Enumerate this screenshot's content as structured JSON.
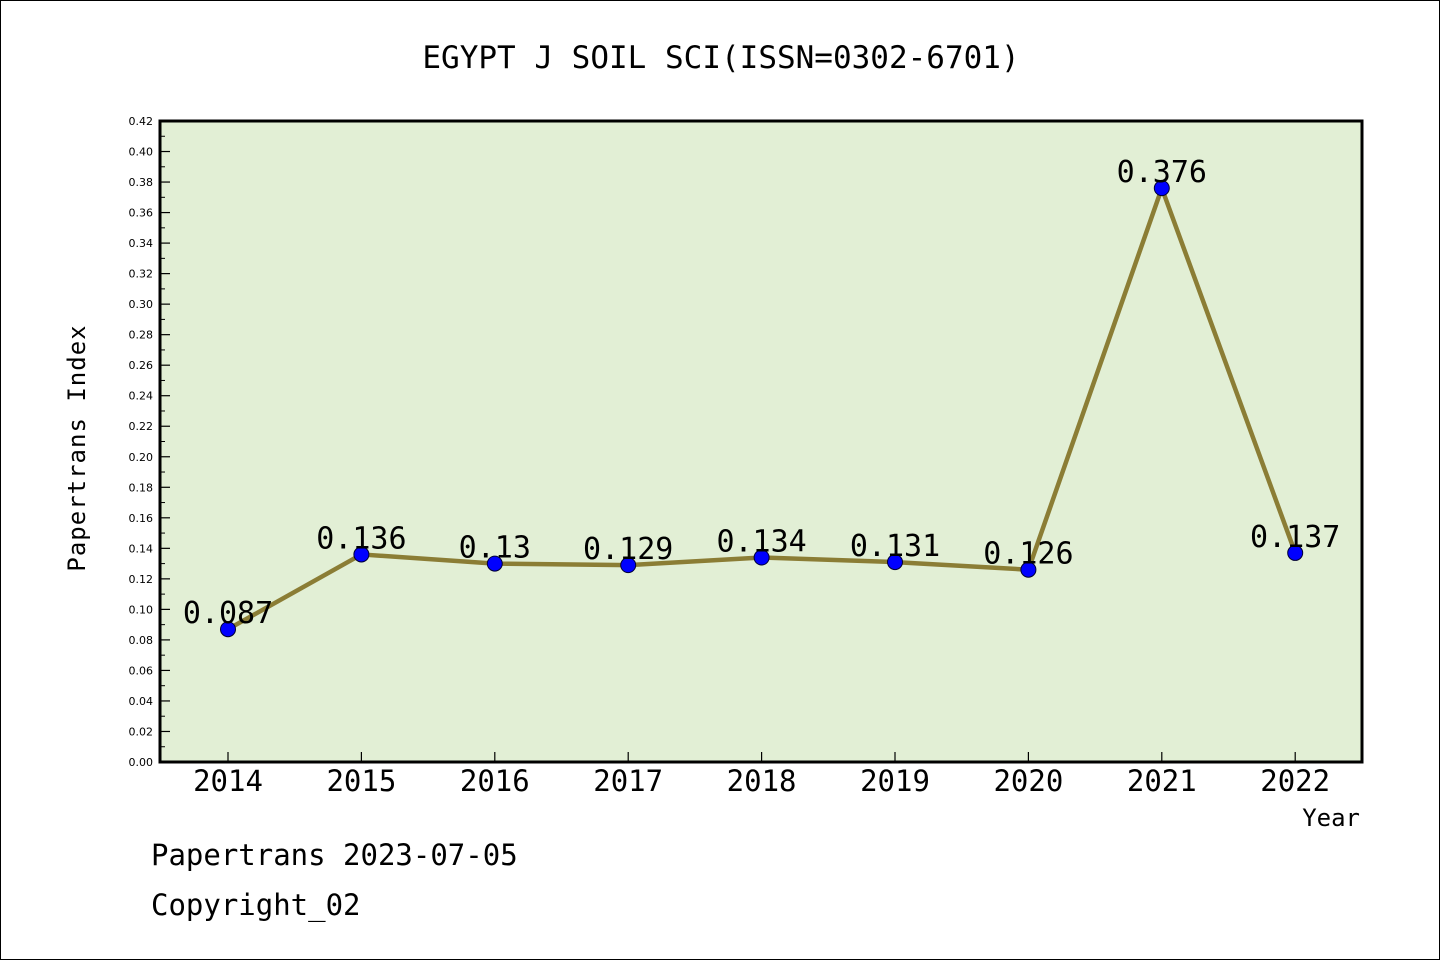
{
  "chart_data": {
    "type": "line",
    "title": "EGYPT J SOIL SCI(ISSN=0302-6701)",
    "xlabel": "Year",
    "ylabel": "Papertrans Index",
    "x": [
      "2014",
      "2015",
      "2016",
      "2017",
      "2018",
      "2019",
      "2020",
      "2021",
      "2022"
    ],
    "series": [
      {
        "values": [
          0.087,
          0.136,
          0.13,
          0.129,
          0.134,
          0.131,
          0.126,
          0.376,
          0.137
        ],
        "labels": [
          "0.087",
          "0.136",
          "0.13",
          "0.129",
          "0.134",
          "0.131",
          "0.126",
          "0.376",
          "0.137"
        ]
      }
    ],
    "ylim": [
      0,
      0.42
    ],
    "yticks": [
      "0.00",
      "0.02",
      "0.04",
      "0.06",
      "0.08",
      "0.10",
      "0.12",
      "0.14",
      "0.16",
      "0.18",
      "0.20",
      "0.22",
      "0.24",
      "0.26",
      "0.28",
      "0.30",
      "0.32",
      "0.34",
      "0.36",
      "0.38",
      "0.40",
      "0.42"
    ],
    "grid": false,
    "line_color": "#8b7d35",
    "marker_color": "#0000ff",
    "plot_background": "#e2efd5"
  },
  "footer": {
    "line1": "Papertrans 2023-07-05",
    "line2": "Copyright_02"
  }
}
